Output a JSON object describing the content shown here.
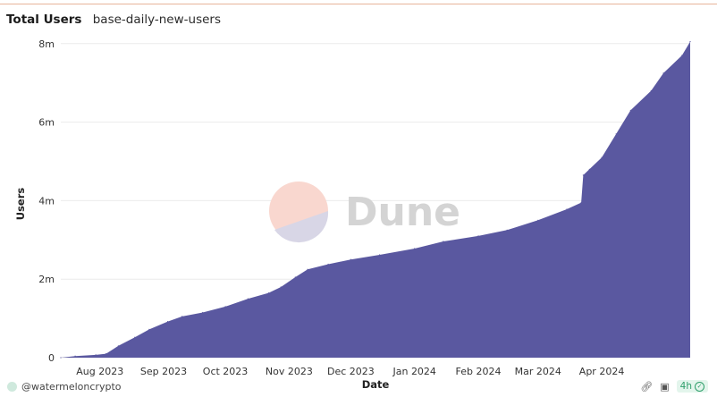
{
  "header": {
    "title": "Total Users",
    "query_name": "base-daily-new-users"
  },
  "watermark": {
    "text": "Dune"
  },
  "footer": {
    "author": "@watermeloncrypto",
    "refresh": "4h"
  },
  "icons": {
    "author_avatar": "avatar-icon",
    "embed": "link-icon",
    "screenshot": "camera-icon",
    "status": "check-circle-icon"
  },
  "colors": {
    "area": "#5a58a0",
    "grid": "#ebebeb"
  },
  "chart_data": {
    "type": "area",
    "xlabel": "Date",
    "ylabel": "Users",
    "ylim": [
      0,
      8200000
    ],
    "x_ticks": [
      "2023-08-01",
      "2023-09-01",
      "2023-10-01",
      "2023-11-01",
      "2023-12-01",
      "2024-01-01",
      "2024-02-01",
      "2024-03-01",
      "2024-04-01"
    ],
    "x_tick_labels": [
      "Aug 2023",
      "Sep 2023",
      "Oct 2023",
      "Nov 2023",
      "Dec 2023",
      "Jan 2024",
      "Feb 2024",
      "Mar 2024",
      "Apr 2024"
    ],
    "y_ticks": [
      0,
      2000000,
      4000000,
      6000000,
      8000000
    ],
    "y_tick_labels": [
      "0",
      "2m",
      "4m",
      "6m",
      "8m"
    ],
    "grid": true,
    "series": [
      {
        "x": [
          "2023-07-13",
          "2023-07-20",
          "2023-07-30",
          "2023-08-04",
          "2023-08-10",
          "2023-08-18",
          "2023-08-25",
          "2023-09-03",
          "2023-09-10",
          "2023-09-20",
          "2023-10-01",
          "2023-10-12",
          "2023-10-22",
          "2023-10-28",
          "2023-11-04",
          "2023-11-10",
          "2023-11-20",
          "2023-12-01",
          "2023-12-15",
          "2024-01-01",
          "2024-01-15",
          "2024-02-01",
          "2024-02-15",
          "2024-03-01",
          "2024-03-15",
          "2024-03-22",
          "2024-03-23",
          "2024-03-26",
          "2024-04-01",
          "2024-04-08",
          "2024-04-15",
          "2024-04-25",
          "2024-05-01",
          "2024-05-10",
          "2024-05-14"
        ],
        "y": [
          0,
          40000,
          70000,
          100000,
          300000,
          520000,
          720000,
          920000,
          1050000,
          1150000,
          1300000,
          1500000,
          1650000,
          1800000,
          2050000,
          2250000,
          2380000,
          2500000,
          2620000,
          2780000,
          2960000,
          3100000,
          3250000,
          3500000,
          3780000,
          3950000,
          4650000,
          4800000,
          5100000,
          5700000,
          6300000,
          6800000,
          7250000,
          7700000,
          8050000
        ]
      }
    ]
  }
}
